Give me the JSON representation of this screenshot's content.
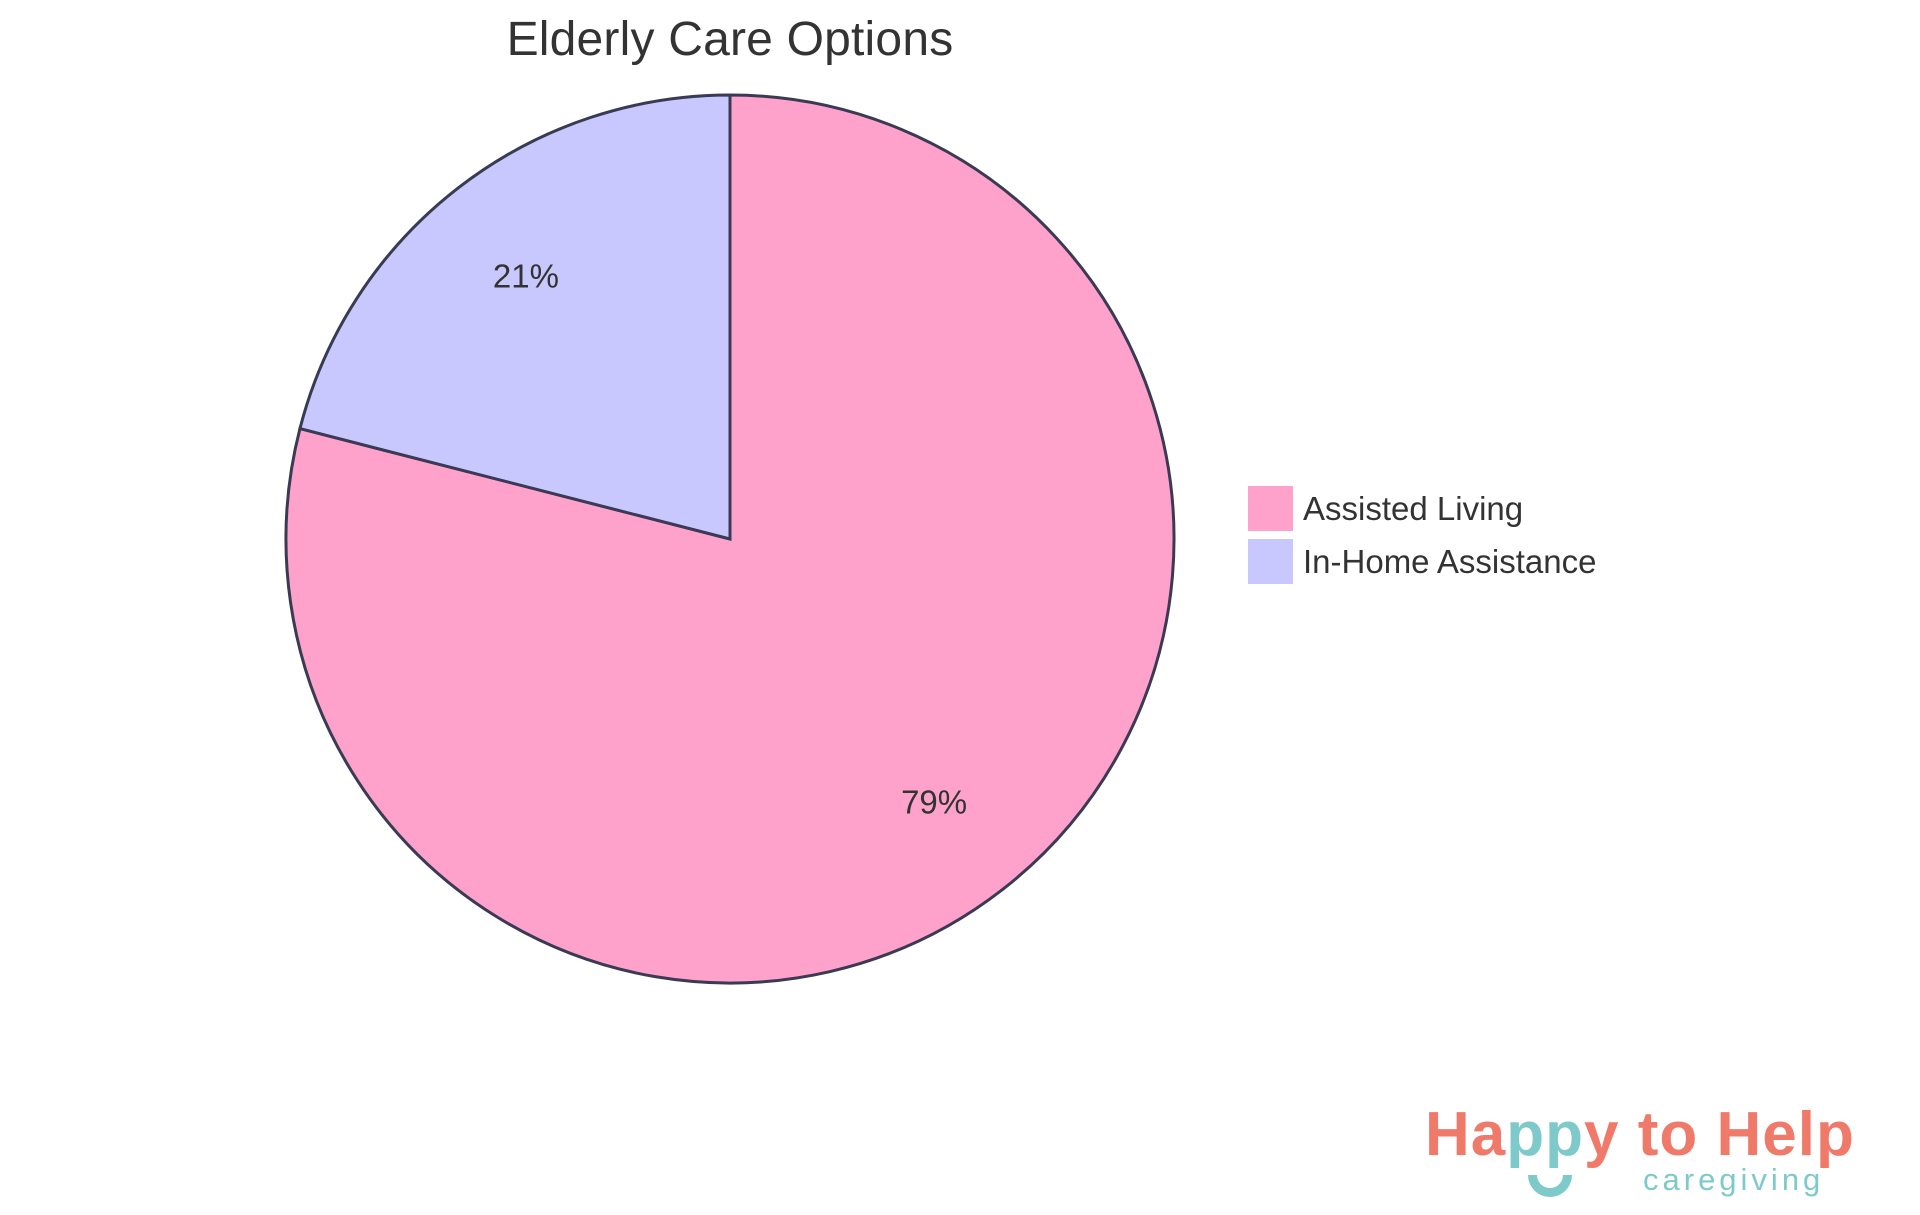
{
  "chart_data": {
    "type": "pie",
    "title": "Elderly Care Options",
    "categories": [
      "Assisted Living",
      "In-Home Assistance"
    ],
    "values": [
      79,
      21
    ],
    "labels": [
      "79%",
      "21%"
    ],
    "colors": [
      "#FFA2CB",
      "#C8C8FF"
    ],
    "stroke_color": "#3A3A55",
    "legend_position": "right",
    "start_angle": "top, clockwise"
  },
  "legend": {
    "items": [
      {
        "label": "Assisted Living",
        "color": "#FFA2CB"
      },
      {
        "label": "In-Home Assistance",
        "color": "#C8C8FF"
      }
    ]
  },
  "logo": {
    "main_parts": [
      {
        "text": "Ha",
        "color": "#F07A6A"
      },
      {
        "text": "pp",
        "color": "#7ECACB"
      },
      {
        "text": "y to Help",
        "color": "#F07A6A"
      }
    ],
    "subtitle": "caregiving",
    "subtitle_color": "#7ECACB",
    "smile_icon_color": "#7ECACB"
  }
}
